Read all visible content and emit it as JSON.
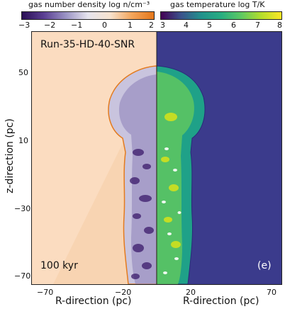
{
  "colorbars": {
    "density": {
      "title": "gas number density log n/cm⁻³",
      "ticks": [
        "−3",
        "−2",
        "−1",
        "0",
        "1",
        "2"
      ],
      "colors": [
        "#3b1b6b",
        "#6a5aa3",
        "#a39dc6",
        "#e3e0ec",
        "#f5dcc2",
        "#f08a2a"
      ]
    },
    "temperature": {
      "title": "gas temperature log T/K",
      "ticks": [
        "3",
        "4",
        "5",
        "6",
        "7",
        "8"
      ],
      "colors": [
        "#3e2f80",
        "#2b7a8e",
        "#21a485",
        "#5ec962",
        "#b5de2b",
        "#fde725"
      ]
    }
  },
  "panel": {
    "run_label": "Run-35-HD-40-SNR",
    "time_label": "100 kyr",
    "panel_letter": "(e)",
    "left_background": "#fbdcc0",
    "right_background": "#3b3b8c"
  },
  "axes": {
    "y_title": "z-direction (pc)",
    "y_ticks": [
      "50",
      "10",
      "−30",
      "−70"
    ],
    "left_x_title": "R-direction (pc)",
    "right_x_title": "R-direction (pc)",
    "left_x_ticks": [
      "−70",
      "−20"
    ],
    "right_x_ticks": [
      "20",
      "70"
    ]
  }
}
